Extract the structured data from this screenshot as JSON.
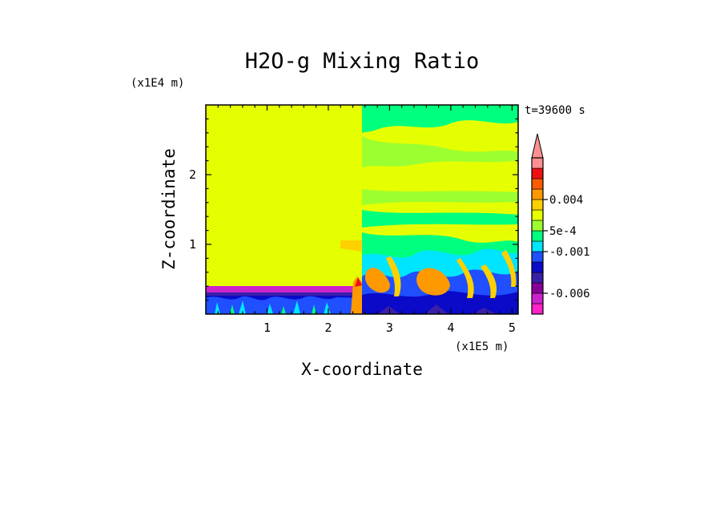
{
  "chart_data": {
    "type": "heatmap",
    "title": "H2O-g Mixing Ratio",
    "xlabel": "X-coordinate",
    "ylabel": "Z-coordinate",
    "x_unit": "(x1E5 m)",
    "y_unit": "(x1E4 m)",
    "time_label": "t=39600 s",
    "xlim": [
      0,
      5.1
    ],
    "ylim": [
      0,
      3.0
    ],
    "x_ticks": [
      {
        "value": 1,
        "label": "1"
      },
      {
        "value": 2,
        "label": "2"
      },
      {
        "value": 3,
        "label": "3"
      },
      {
        "value": 4,
        "label": "4"
      },
      {
        "value": 5,
        "label": "5"
      }
    ],
    "y_ticks": [
      {
        "value": 1,
        "label": "1"
      },
      {
        "value": 2,
        "label": "2"
      }
    ],
    "colorbar": {
      "colors_bottom_to_top": [
        "#ff22c8",
        "#cc22cc",
        "#880099",
        "#3b1fa8",
        "#0a0ac8",
        "#1f4fff",
        "#00e5ff",
        "#00ff7f",
        "#9cff30",
        "#e6ff00",
        "#ffd000",
        "#ff9900",
        "#ff5a00",
        "#ee1111",
        "#ff9090"
      ],
      "labels": [
        {
          "text": "-0.006",
          "level": 2
        },
        {
          "text": "-0.001",
          "level": 6
        },
        {
          "text": "5e-4",
          "level": 8
        },
        {
          "text": "0.004",
          "level": 11
        }
      ],
      "extend": "max"
    },
    "regions": [
      {
        "x": [
          0.0,
          2.5
        ],
        "z": [
          0.38,
          3.0
        ],
        "color": "#e6ff00"
      },
      {
        "x": [
          0.0,
          2.5
        ],
        "z": [
          0.0,
          0.38
        ],
        "color": "#0a0ac8"
      },
      {
        "x": [
          2.5,
          5.1
        ],
        "z": [
          0.0,
          3.0
        ],
        "color": "#e6ff00"
      },
      {
        "x": [
          2.5,
          5.1
        ],
        "z": [
          2.68,
          3.0
        ],
        "color": "#00ff7f"
      },
      {
        "x": [
          2.5,
          5.1
        ],
        "z": [
          0.0,
          0.6
        ],
        "color": "#00e5ff"
      }
    ]
  }
}
